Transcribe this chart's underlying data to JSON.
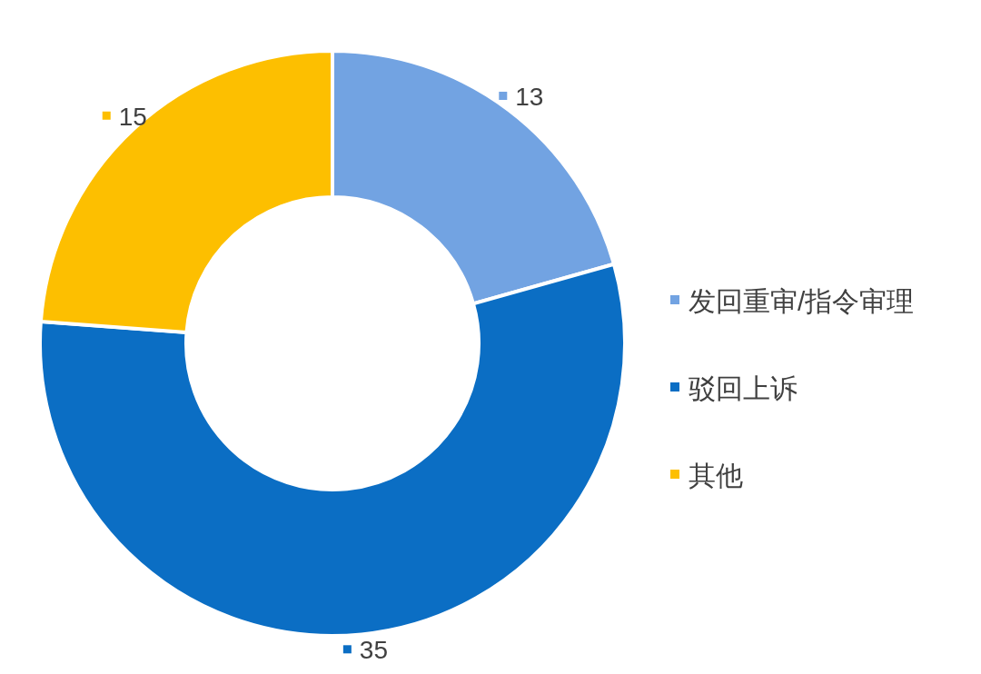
{
  "chart_data": {
    "type": "donut",
    "categories": [
      "发回重审/指令审理",
      "驳回上诉",
      "其他"
    ],
    "values": [
      13,
      35,
      15
    ],
    "colors": [
      "#72a3e2",
      "#0b6ec4",
      "#fdbf00"
    ],
    "data_labels": true,
    "legend": "right"
  }
}
